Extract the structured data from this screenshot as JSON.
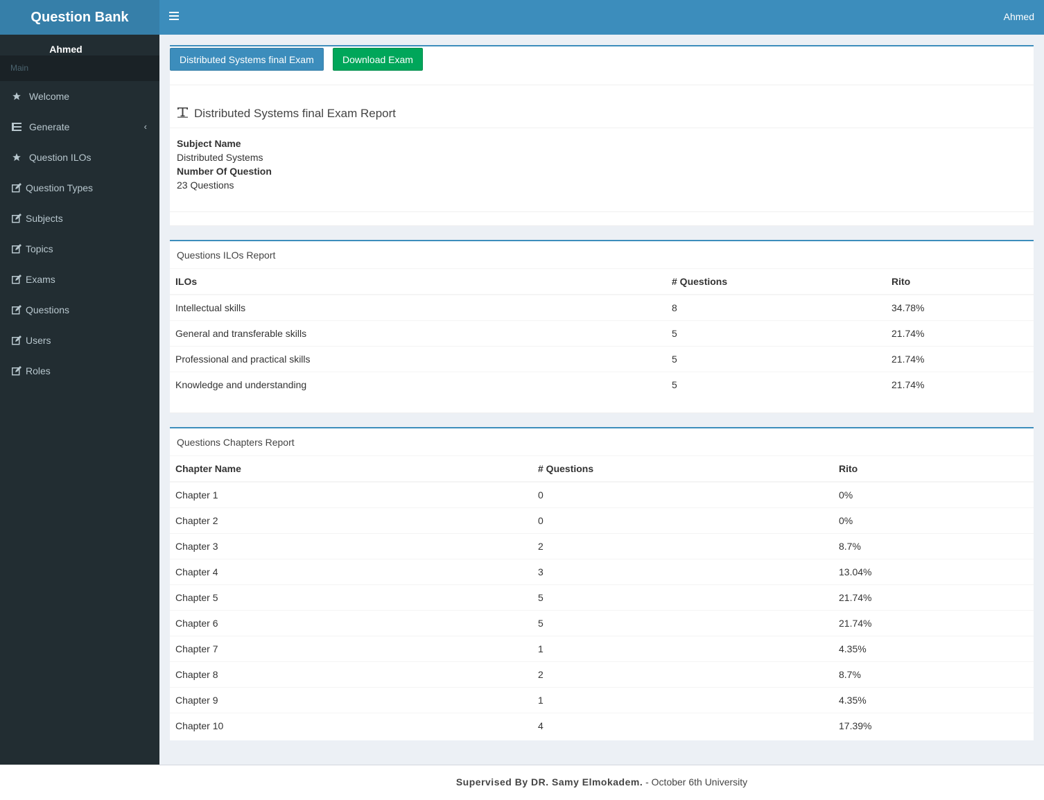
{
  "app": {
    "title": "Question Bank"
  },
  "sidebar": {
    "user": "Ahmed",
    "header": "Main",
    "items": [
      {
        "label": "Welcome",
        "icon": "star-icon"
      },
      {
        "label": "Generate",
        "icon": "list-icon",
        "chevron": "‹"
      },
      {
        "label": "Question ILOs",
        "icon": "star-icon"
      },
      {
        "label": "Question Types",
        "icon": "edit-icon"
      },
      {
        "label": "Subjects",
        "icon": "edit-icon"
      },
      {
        "label": "Topics",
        "icon": "edit-icon"
      },
      {
        "label": "Exams",
        "icon": "edit-icon"
      },
      {
        "label": "Questions",
        "icon": "edit-icon"
      },
      {
        "label": "Users",
        "icon": "edit-icon"
      },
      {
        "label": "Roles",
        "icon": "edit-icon"
      }
    ]
  },
  "topbar": {
    "user": "Ahmed"
  },
  "exam": {
    "title_button": "Distributed Systems final Exam",
    "download_button": "Download Exam",
    "report_title": "Distributed Systems final Exam Report",
    "subject_label": "Subject Name",
    "subject_value": "Distributed Systems",
    "count_label": "Number Of Question",
    "count_value": "23 Questions"
  },
  "ilos_report": {
    "title": "Questions ILOs Report",
    "columns": [
      "ILOs",
      "# Questions",
      "Rito"
    ],
    "rows": [
      [
        "Intellectual skills",
        "8",
        "34.78%"
      ],
      [
        "General and transferable skills",
        "5",
        "21.74%"
      ],
      [
        "Professional and practical skills",
        "5",
        "21.74%"
      ],
      [
        "Knowledge and understanding",
        "5",
        "21.74%"
      ]
    ]
  },
  "chapters_report": {
    "title": "Questions Chapters Report",
    "columns": [
      "Chapter Name",
      "# Questions",
      "Rito"
    ],
    "rows": [
      [
        "Chapter 1",
        "0",
        "0%"
      ],
      [
        "Chapter 2",
        "0",
        "0%"
      ],
      [
        "Chapter 3",
        "2",
        "8.7%"
      ],
      [
        "Chapter 4",
        "3",
        "13.04%"
      ],
      [
        "Chapter 5",
        "5",
        "21.74%"
      ],
      [
        "Chapter 6",
        "5",
        "21.74%"
      ],
      [
        "Chapter 7",
        "1",
        "4.35%"
      ],
      [
        "Chapter 8",
        "2",
        "8.7%"
      ],
      [
        "Chapter 9",
        "1",
        "4.35%"
      ],
      [
        "Chapter 10",
        "4",
        "17.39%"
      ]
    ]
  },
  "footer": {
    "supervisor": "Supervised By DR. Samy Elmokadem.",
    "university": " - October 6th University"
  }
}
